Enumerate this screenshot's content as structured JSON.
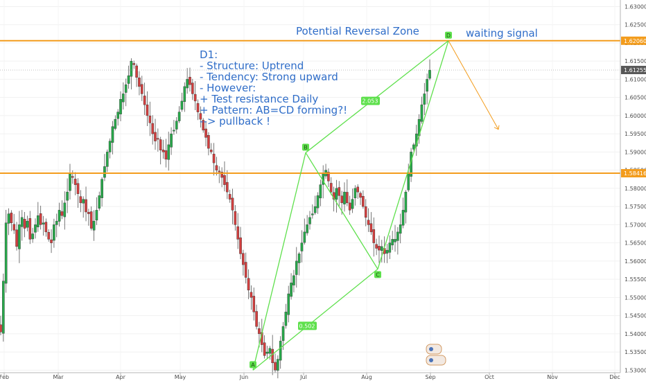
{
  "colors": {
    "up": "#27a84a",
    "down": "#d33f3f",
    "level": "#f39c1c",
    "pattern": "#5ee04c",
    "note": "#2f6dc8",
    "price_tag_current": "#575757",
    "arrow": "#f39c1c"
  },
  "chart_data": {
    "type": "candlestick",
    "timeframe": "D1",
    "x_ticks": [
      "Feb",
      "Mar",
      "Apr",
      "May",
      "Jun",
      "Jul",
      "Aug",
      "Sep",
      "Oct",
      "Nov",
      "Dec"
    ],
    "y_ticks": [
      "1.63000",
      "1.62500",
      "1.62000",
      "1.61500",
      "1.61000",
      "1.60500",
      "1.60000",
      "1.59500",
      "1.59000",
      "1.58500",
      "1.58000",
      "1.57500",
      "1.57000",
      "1.56500",
      "1.56000",
      "1.55500",
      "1.55000",
      "1.54500",
      "1.54000",
      "1.53500",
      "1.53000"
    ],
    "ylim": [
      1.5293,
      1.6318
    ],
    "levels": [
      {
        "price": 1.6206,
        "label": "1.62060"
      },
      {
        "price": 1.58416,
        "label": "1.58416"
      }
    ],
    "current_price": {
      "price": 1.61255,
      "label": "1.61255"
    },
    "pattern_points": [
      {
        "name": "A",
        "date_index": 0.0,
        "price": 1.53
      },
      {
        "name": "B",
        "date_index": 1.0,
        "price": 1.5898
      },
      {
        "name": "C",
        "date_index": 2.0,
        "price": 1.5578
      },
      {
        "name": "D",
        "date_index": 3.0,
        "price": 1.6206
      }
    ],
    "ratios": [
      {
        "label": "2.053"
      },
      {
        "label": "0.502"
      }
    ],
    "annotations": {
      "zone_title": "Potential Reversal Zone",
      "waiting": "waiting signal",
      "note_lines": [
        "D1:",
        "- Structure: Uptrend",
        "- Tendency: Strong upward",
        "- However:",
        "+ Test resistance Daily",
        "+ Pattern: AB=CD forming?!",
        "--> pullback !"
      ]
    },
    "closes": [
      1.5405,
      1.5545,
      1.5705,
      1.573,
      1.5705,
      1.5685,
      1.564,
      1.57,
      1.572,
      1.569,
      1.571,
      1.566,
      1.5675,
      1.57,
      1.5725,
      1.57,
      1.5705,
      1.568,
      1.566,
      1.565,
      1.57,
      1.571,
      1.574,
      1.5725,
      1.576,
      1.579,
      1.584,
      1.583,
      1.581,
      1.5785,
      1.576,
      1.577,
      1.5735,
      1.573,
      1.569,
      1.571,
      1.574,
      1.578,
      1.5825,
      1.586,
      1.59,
      1.593,
      1.597,
      1.599,
      1.601,
      1.6045,
      1.606,
      1.6085,
      1.611,
      1.615,
      1.614,
      1.6105,
      1.608,
      1.606,
      1.603,
      1.6,
      1.598,
      1.595,
      1.593,
      1.5935,
      1.5905,
      1.59,
      1.588,
      1.592,
      1.595,
      1.596,
      1.5985,
      1.601,
      1.604,
      1.608,
      1.61,
      1.6085,
      1.606,
      1.604,
      1.601,
      1.599,
      1.596,
      1.594,
      1.591,
      1.59,
      1.587,
      1.585,
      1.5845,
      1.583,
      1.581,
      1.579,
      1.577,
      1.574,
      1.57,
      1.566,
      1.562,
      1.559,
      1.5555,
      1.552,
      1.55,
      1.546,
      1.542,
      1.54,
      1.537,
      1.534,
      1.535,
      1.536,
      1.532,
      1.53,
      1.533,
      1.538,
      1.542,
      1.546,
      1.551,
      1.554,
      1.556,
      1.56,
      1.562,
      1.565,
      1.568,
      1.57,
      1.572,
      1.573,
      1.575,
      1.578,
      1.581,
      1.584,
      1.585,
      1.582,
      1.579,
      1.577,
      1.58,
      1.578,
      1.576,
      1.579,
      1.576,
      1.574,
      1.577,
      1.58,
      1.579,
      1.5775,
      1.575,
      1.572,
      1.57,
      1.568,
      1.565,
      1.5635,
      1.563,
      1.564,
      1.562,
      1.563,
      1.565,
      1.566,
      1.566,
      1.568,
      1.57,
      1.574,
      1.579,
      1.584,
      1.59,
      1.592,
      1.595,
      1.599,
      1.603,
      1.606,
      1.61,
      1.6125
    ]
  }
}
